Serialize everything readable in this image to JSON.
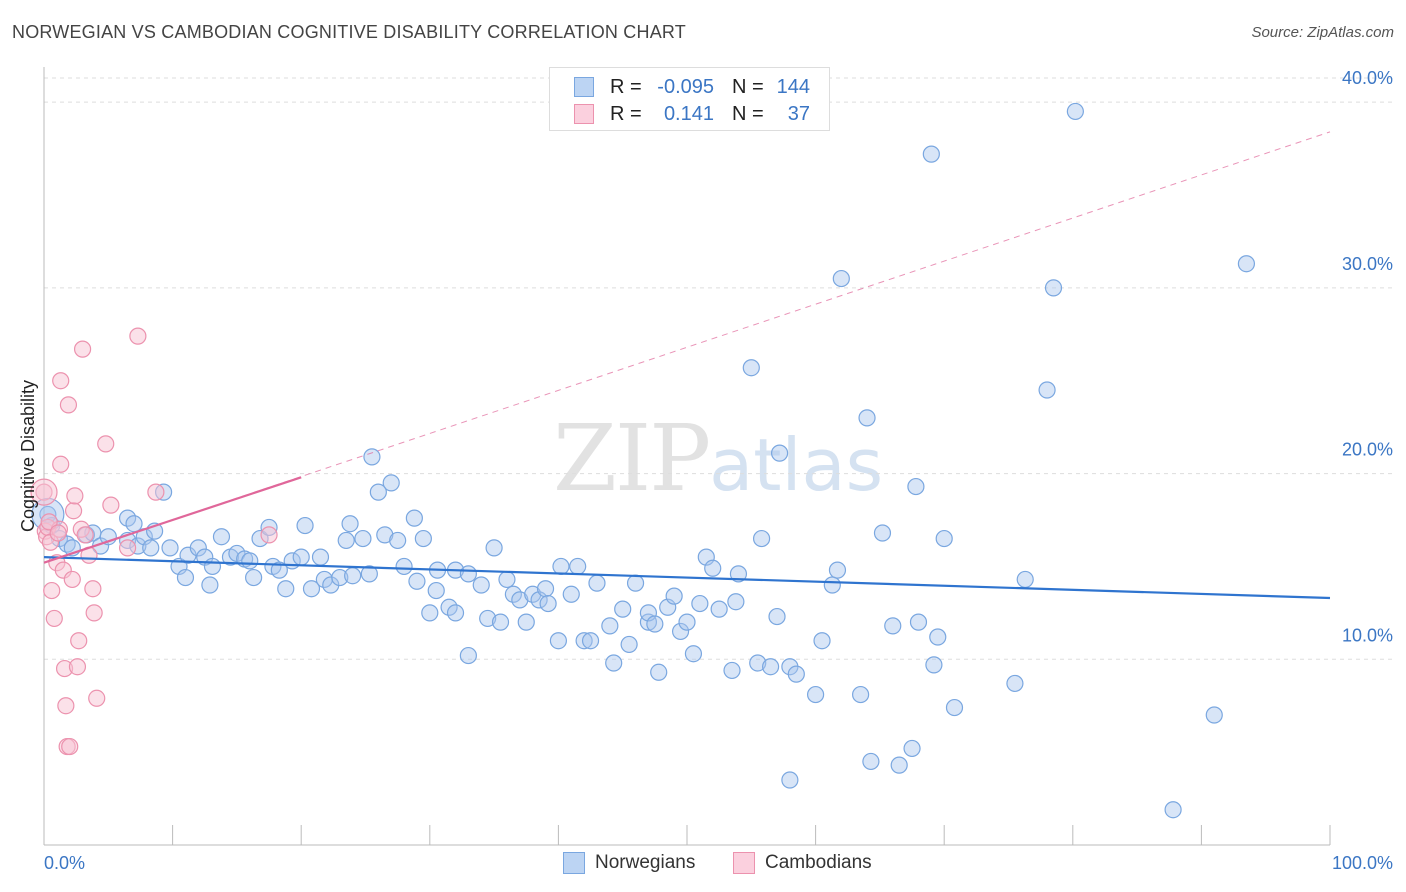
{
  "header": {
    "title": "NORWEGIAN VS CAMBODIAN COGNITIVE DISABILITY CORRELATION CHART",
    "source": "Source: ZipAtlas.com"
  },
  "watermark": {
    "zip": "ZIP",
    "atlas": "atlas"
  },
  "legend": {
    "rows": [
      {
        "r_label": "R =",
        "r_value": "-0.095",
        "n_label": "N =",
        "n_value": "144",
        "color": "#a8c6ee"
      },
      {
        "r_label": "R =",
        "r_value": "0.141",
        "n_label": "N =",
        "n_value": "37",
        "color": "#f5b8cb"
      }
    ]
  },
  "bottom_legend": [
    {
      "label": "Norwegians",
      "color": "#a8c6ee"
    },
    {
      "label": "Cambodians",
      "color": "#f5b8cb"
    }
  ],
  "colors": {
    "norwegian_fill": "#a8c6ee",
    "norwegian_stroke": "#7aa7e0",
    "norwegian_line": "#2f74cf",
    "cambodian_fill": "#f7c3d3",
    "cambodian_stroke": "#ec92ae",
    "cambodian_line": "#e0679a",
    "grid": "#dddddd",
    "axis_text": "#3b76c4"
  },
  "chart_data": {
    "type": "scatter",
    "title": "NORWEGIAN VS CAMBODIAN COGNITIVE DISABILITY CORRELATION CHART",
    "xlabel": "",
    "ylabel": "Cognitive Disability",
    "xlim": [
      0,
      100
    ],
    "ylim": [
      0,
      41.3
    ],
    "x_tick_labels": [
      "0.0%",
      "100.0%"
    ],
    "y_ticks": [
      10,
      20,
      30,
      40
    ],
    "y_tick_labels": [
      "10.0%",
      "20.0%",
      "30.0%",
      "40.0%"
    ],
    "grid": true,
    "legend_position": "top-center",
    "series": [
      {
        "name": "Norwegians",
        "trend": {
          "x": [
            0,
            100
          ],
          "y": [
            15.5,
            13.3
          ],
          "style": "solid"
        },
        "points": [
          [
            0.3,
            17.8
          ],
          [
            0.6,
            17.2
          ],
          [
            1.2,
            16.5
          ],
          [
            1.8,
            16.2
          ],
          [
            2.2,
            16.0
          ],
          [
            3.3,
            16.7
          ],
          [
            3.8,
            16.8
          ],
          [
            4.4,
            16.1
          ],
          [
            5.0,
            16.6
          ],
          [
            6.5,
            16.4
          ],
          [
            6.5,
            17.6
          ],
          [
            7.0,
            17.3
          ],
          [
            7.3,
            16.1
          ],
          [
            7.8,
            16.6
          ],
          [
            8.3,
            16.0
          ],
          [
            8.6,
            16.9
          ],
          [
            9.3,
            19.0
          ],
          [
            9.8,
            16.0
          ],
          [
            10.5,
            15.0
          ],
          [
            11.0,
            14.4
          ],
          [
            11.2,
            15.6
          ],
          [
            12.0,
            16.0
          ],
          [
            12.5,
            15.5
          ],
          [
            12.9,
            14.0
          ],
          [
            13.1,
            15.0
          ],
          [
            13.8,
            16.6
          ],
          [
            14.5,
            15.5
          ],
          [
            15.0,
            15.7
          ],
          [
            15.6,
            15.4
          ],
          [
            16.0,
            15.3
          ],
          [
            16.3,
            14.4
          ],
          [
            16.8,
            16.5
          ],
          [
            17.5,
            17.1
          ],
          [
            17.8,
            15.0
          ],
          [
            18.3,
            14.8
          ],
          [
            18.8,
            13.8
          ],
          [
            19.3,
            15.3
          ],
          [
            20.0,
            15.5
          ],
          [
            20.3,
            17.2
          ],
          [
            20.8,
            13.8
          ],
          [
            21.5,
            15.5
          ],
          [
            21.8,
            14.3
          ],
          [
            22.3,
            14.0
          ],
          [
            23.0,
            14.4
          ],
          [
            23.5,
            16.4
          ],
          [
            23.8,
            17.3
          ],
          [
            24.0,
            14.5
          ],
          [
            24.8,
            16.5
          ],
          [
            25.3,
            14.6
          ],
          [
            25.5,
            20.9
          ],
          [
            26.0,
            19.0
          ],
          [
            26.5,
            16.7
          ],
          [
            27.0,
            19.5
          ],
          [
            27.5,
            16.4
          ],
          [
            28.0,
            15.0
          ],
          [
            28.8,
            17.6
          ],
          [
            29.0,
            14.2
          ],
          [
            29.5,
            16.5
          ],
          [
            30.0,
            12.5
          ],
          [
            30.5,
            13.7
          ],
          [
            30.6,
            14.8
          ],
          [
            31.5,
            12.8
          ],
          [
            32.0,
            14.8
          ],
          [
            32.0,
            12.5
          ],
          [
            33.0,
            14.6
          ],
          [
            33.0,
            10.2
          ],
          [
            34.0,
            14.0
          ],
          [
            34.5,
            12.2
          ],
          [
            35.0,
            16.0
          ],
          [
            35.5,
            12.0
          ],
          [
            36.0,
            14.3
          ],
          [
            36.5,
            13.5
          ],
          [
            37.0,
            13.2
          ],
          [
            37.5,
            12.0
          ],
          [
            38.0,
            13.5
          ],
          [
            38.5,
            13.2
          ],
          [
            39.0,
            13.8
          ],
          [
            39.2,
            13.0
          ],
          [
            40.0,
            11.0
          ],
          [
            40.2,
            15.0
          ],
          [
            41.0,
            13.5
          ],
          [
            41.5,
            15.0
          ],
          [
            42.0,
            11.0
          ],
          [
            42.5,
            11.0
          ],
          [
            43.0,
            14.1
          ],
          [
            44.0,
            11.8
          ],
          [
            44.3,
            9.8
          ],
          [
            45.0,
            12.7
          ],
          [
            45.5,
            10.8
          ],
          [
            46.0,
            14.1
          ],
          [
            47.0,
            12.0
          ],
          [
            47.0,
            12.5
          ],
          [
            47.5,
            11.9
          ],
          [
            47.8,
            9.3
          ],
          [
            48.5,
            12.8
          ],
          [
            49.0,
            13.4
          ],
          [
            49.5,
            11.5
          ],
          [
            50.0,
            12.0
          ],
          [
            50.5,
            10.3
          ],
          [
            51.0,
            13.0
          ],
          [
            51.5,
            15.5
          ],
          [
            52.0,
            14.9
          ],
          [
            52.5,
            12.7
          ],
          [
            53.5,
            9.4
          ],
          [
            53.8,
            13.1
          ],
          [
            54.0,
            14.6
          ],
          [
            55.0,
            25.7
          ],
          [
            55.5,
            9.8
          ],
          [
            55.8,
            16.5
          ],
          [
            56.5,
            9.6
          ],
          [
            57.0,
            12.3
          ],
          [
            57.2,
            21.1
          ],
          [
            58.0,
            9.6
          ],
          [
            58.5,
            9.2
          ],
          [
            60.0,
            8.1
          ],
          [
            60.5,
            11.0
          ],
          [
            61.3,
            14.0
          ],
          [
            61.7,
            14.8
          ],
          [
            62.0,
            30.5
          ],
          [
            63.5,
            8.1
          ],
          [
            64.0,
            23.0
          ],
          [
            64.3,
            4.5
          ],
          [
            65.2,
            16.8
          ],
          [
            66.0,
            11.8
          ],
          [
            66.5,
            4.3
          ],
          [
            67.5,
            5.2
          ],
          [
            67.8,
            19.3
          ],
          [
            68.0,
            12.0
          ],
          [
            69.0,
            37.2
          ],
          [
            69.2,
            9.7
          ],
          [
            69.5,
            11.2
          ],
          [
            70.0,
            16.5
          ],
          [
            70.8,
            7.4
          ],
          [
            75.5,
            8.7
          ],
          [
            76.3,
            14.3
          ],
          [
            78.0,
            24.5
          ],
          [
            78.5,
            30.0
          ],
          [
            80.2,
            39.5
          ],
          [
            87.8,
            1.9
          ],
          [
            91.0,
            7.0
          ],
          [
            93.5,
            31.3
          ],
          [
            58.0,
            3.5
          ]
        ]
      },
      {
        "name": "Cambodians",
        "trend": {
          "x": [
            0,
            20
          ],
          "y": [
            15.2,
            19.8
          ],
          "style": "solid",
          "extended_to": [
            100,
            38.4
          ],
          "extended_style": "dashed"
        },
        "points": [
          [
            0.0,
            19.0
          ],
          [
            0.1,
            16.9
          ],
          [
            0.2,
            16.6
          ],
          [
            0.3,
            17.1
          ],
          [
            0.5,
            16.3
          ],
          [
            0.6,
            13.7
          ],
          [
            0.8,
            12.2
          ],
          [
            1.0,
            15.2
          ],
          [
            1.2,
            17.0
          ],
          [
            1.3,
            25.0
          ],
          [
            1.3,
            20.5
          ],
          [
            1.5,
            14.8
          ],
          [
            1.6,
            9.5
          ],
          [
            1.7,
            7.5
          ],
          [
            1.8,
            5.3
          ],
          [
            1.9,
            23.7
          ],
          [
            2.0,
            5.3
          ],
          [
            2.2,
            14.3
          ],
          [
            2.3,
            18.0
          ],
          [
            2.4,
            18.8
          ],
          [
            2.6,
            9.6
          ],
          [
            2.7,
            11.0
          ],
          [
            2.9,
            17.0
          ],
          [
            3.0,
            26.7
          ],
          [
            3.2,
            16.7
          ],
          [
            3.5,
            15.6
          ],
          [
            3.8,
            13.8
          ],
          [
            3.9,
            12.5
          ],
          [
            4.1,
            7.9
          ],
          [
            4.8,
            21.6
          ],
          [
            5.2,
            18.3
          ],
          [
            6.5,
            16.0
          ],
          [
            7.3,
            27.4
          ],
          [
            8.7,
            19.0
          ],
          [
            17.5,
            16.7
          ],
          [
            0.4,
            17.4
          ],
          [
            1.1,
            16.8
          ]
        ]
      }
    ]
  }
}
